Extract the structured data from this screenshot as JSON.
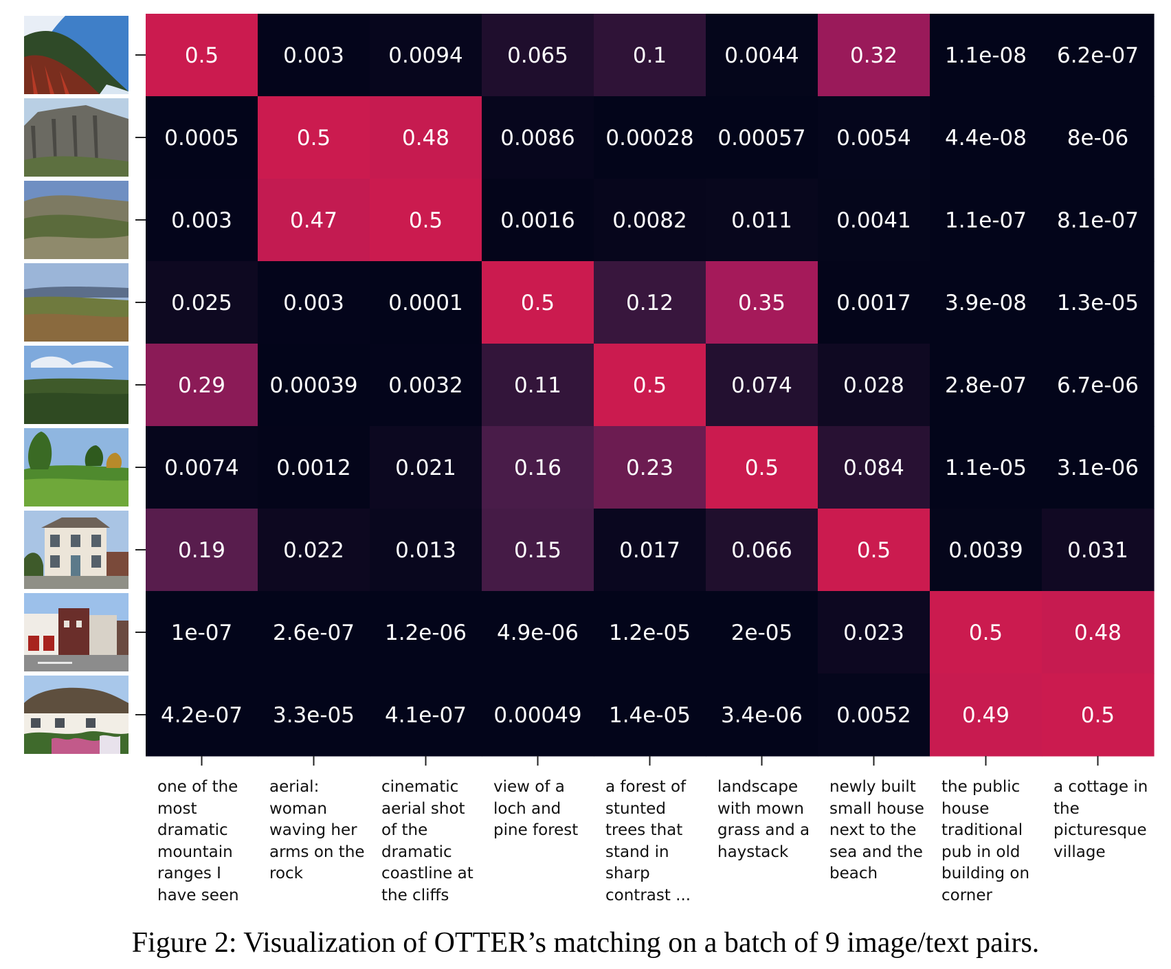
{
  "chart_data": {
    "type": "heatmap",
    "title": "",
    "xlabel": "",
    "ylabel": "",
    "row_labels": [
      "image-1-mountain-coast-cliffs",
      "image-2-rocky-cliff",
      "image-3-rocky-heathland",
      "image-4-loch-view-moor",
      "image-5-forest-plain",
      "image-6-green-meadow-trees",
      "image-7-house",
      "image-8-street-pub",
      "image-9-thatched-cottage"
    ],
    "column_labels": [
      "one of the\nmost\ndramatic\nmountain\nranges I\nhave seen",
      "aerial:\nwoman\nwaving her\narms on the\nrock",
      "cinematic\naerial shot\nof the\ndramatic\ncoastline at\nthe cliffs",
      "view of a\nloch and\npine forest",
      "a forest of\nstunted\ntrees that\nstand in\nsharp\ncontrast ...",
      "landscape\nwith mown\ngrass and a\nhaystack",
      "newly built\nsmall house\nnext to the\nsea and the\nbeach",
      "the public\nhouse\ntraditional\npub in old\nbuilding on\ncorner",
      "a cottage in\nthe\npicturesque\nvillage"
    ],
    "labels": [
      [
        "0.5",
        "0.003",
        "0.0094",
        "0.065",
        "0.1",
        "0.0044",
        "0.32",
        "1.1e-08",
        "6.2e-07"
      ],
      [
        "0.0005",
        "0.5",
        "0.48",
        "0.0086",
        "0.00028",
        "0.00057",
        "0.0054",
        "4.4e-08",
        "8e-06"
      ],
      [
        "0.003",
        "0.47",
        "0.5",
        "0.0016",
        "0.0082",
        "0.011",
        "0.0041",
        "1.1e-07",
        "8.1e-07"
      ],
      [
        "0.025",
        "0.003",
        "0.0001",
        "0.5",
        "0.12",
        "0.35",
        "0.0017",
        "3.9e-08",
        "1.3e-05"
      ],
      [
        "0.29",
        "0.00039",
        "0.0032",
        "0.11",
        "0.5",
        "0.074",
        "0.028",
        "2.8e-07",
        "6.7e-06"
      ],
      [
        "0.0074",
        "0.0012",
        "0.021",
        "0.16",
        "0.23",
        "0.5",
        "0.084",
        "1.1e-05",
        "3.1e-06"
      ],
      [
        "0.19",
        "0.022",
        "0.013",
        "0.15",
        "0.017",
        "0.066",
        "0.5",
        "0.0039",
        "0.031"
      ],
      [
        "1e-07",
        "2.6e-07",
        "1.2e-06",
        "4.9e-06",
        "1.2e-05",
        "2e-05",
        "0.023",
        "0.5",
        "0.48"
      ],
      [
        "4.2e-07",
        "3.3e-05",
        "4.1e-07",
        "0.00049",
        "1.4e-05",
        "3.4e-06",
        "0.0052",
        "0.49",
        "0.5"
      ]
    ],
    "values": [
      [
        0.5,
        0.003,
        0.0094,
        0.065,
        0.1,
        0.0044,
        0.32,
        1.1e-08,
        6.2e-07
      ],
      [
        0.0005,
        0.5,
        0.48,
        0.0086,
        0.00028,
        0.00057,
        0.0054,
        4.4e-08,
        8e-06
      ],
      [
        0.003,
        0.47,
        0.5,
        0.0016,
        0.0082,
        0.011,
        0.0041,
        1.1e-07,
        8.1e-07
      ],
      [
        0.025,
        0.003,
        0.0001,
        0.5,
        0.12,
        0.35,
        0.0017,
        3.9e-08,
        1.3e-05
      ],
      [
        0.29,
        0.00039,
        0.0032,
        0.11,
        0.5,
        0.074,
        0.028,
        2.8e-07,
        6.7e-06
      ],
      [
        0.0074,
        0.0012,
        0.021,
        0.16,
        0.23,
        0.5,
        0.084,
        1.1e-05,
        3.1e-06
      ],
      [
        0.19,
        0.022,
        0.013,
        0.15,
        0.017,
        0.066,
        0.5,
        0.0039,
        0.031
      ],
      [
        1e-07,
        2.6e-07,
        1.2e-06,
        4.9e-06,
        1.2e-05,
        2e-05,
        0.023,
        0.5,
        0.48
      ],
      [
        4.2e-07,
        3.3e-05,
        4.1e-07,
        0.00049,
        1.4e-05,
        3.4e-06,
        0.0052,
        0.49,
        0.5
      ]
    ],
    "value_range": [
      0,
      0.5
    ],
    "colormap": [
      "#03051a",
      "#4c1d4b",
      "#a11a5b",
      "#cb1b4f"
    ],
    "grid": false,
    "legend": "none"
  },
  "caption": "Figure 2: Visualization of OTTER’s matching on a batch of 9 image/text pairs."
}
